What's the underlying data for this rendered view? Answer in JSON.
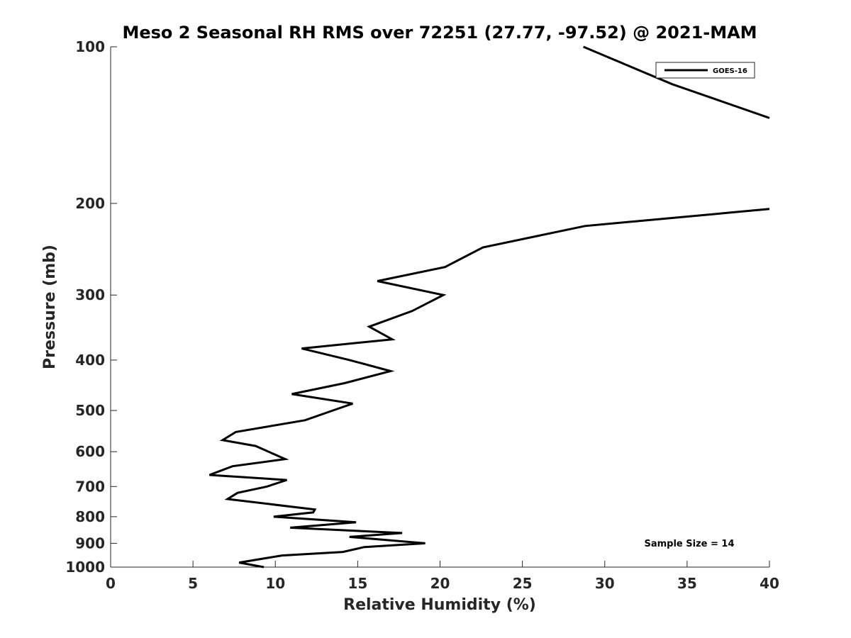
{
  "chart_data": {
    "type": "line",
    "title": "Meso 2 Seasonal RH RMS over 72251 (27.77, -97.52) @ 2021-MAM",
    "xlabel": "Relative Humidity (%)",
    "ylabel": "Pressure (mb)",
    "xlim": [
      0,
      40
    ],
    "ylim": [
      100,
      1000
    ],
    "y_scale": "log",
    "y_reversed": true,
    "xticks": [
      "0",
      "5",
      "10",
      "15",
      "20",
      "25",
      "30",
      "35",
      "40"
    ],
    "yticks": [
      "100",
      "200",
      "300",
      "400",
      "500",
      "600",
      "700",
      "800",
      "900",
      "1000"
    ],
    "legend_position": "top-right",
    "grid": false,
    "series": [
      {
        "name": "GOES-16",
        "color": "#000000",
        "segments": [
          [
            {
              "x": 28.7,
              "y": 100
            },
            {
              "x": 34.1,
              "y": 118
            },
            {
              "x": 40.0,
              "y": 137
            }
          ],
          [
            {
              "x": 40.0,
              "y": 205
            },
            {
              "x": 28.8,
              "y": 221
            },
            {
              "x": 22.6,
              "y": 243
            },
            {
              "x": 20.3,
              "y": 265
            },
            {
              "x": 16.2,
              "y": 282
            },
            {
              "x": 20.2,
              "y": 300
            },
            {
              "x": 18.3,
              "y": 322
            },
            {
              "x": 15.7,
              "y": 345
            },
            {
              "x": 17.1,
              "y": 365
            },
            {
              "x": 11.6,
              "y": 380
            },
            {
              "x": 14.5,
              "y": 400
            },
            {
              "x": 17.0,
              "y": 420
            },
            {
              "x": 14.2,
              "y": 443
            },
            {
              "x": 11.0,
              "y": 465
            },
            {
              "x": 14.7,
              "y": 485
            },
            {
              "x": 13.5,
              "y": 500
            },
            {
              "x": 11.8,
              "y": 522
            },
            {
              "x": 7.6,
              "y": 550
            },
            {
              "x": 6.8,
              "y": 570
            },
            {
              "x": 8.8,
              "y": 585
            },
            {
              "x": 10.6,
              "y": 620
            },
            {
              "x": 7.4,
              "y": 640
            },
            {
              "x": 6.0,
              "y": 665
            },
            {
              "x": 10.7,
              "y": 680
            },
            {
              "x": 9.5,
              "y": 700
            },
            {
              "x": 7.7,
              "y": 720
            },
            {
              "x": 7.1,
              "y": 740
            },
            {
              "x": 12.4,
              "y": 775
            },
            {
              "x": 12.3,
              "y": 785
            },
            {
              "x": 9.9,
              "y": 800
            },
            {
              "x": 14.9,
              "y": 820
            },
            {
              "x": 10.9,
              "y": 840
            },
            {
              "x": 17.7,
              "y": 860
            },
            {
              "x": 14.5,
              "y": 875
            },
            {
              "x": 19.1,
              "y": 900
            },
            {
              "x": 15.4,
              "y": 915
            },
            {
              "x": 14.1,
              "y": 935
            },
            {
              "x": 10.4,
              "y": 950
            },
            {
              "x": 7.8,
              "y": 980
            },
            {
              "x": 9.3,
              "y": 1000
            }
          ]
        ]
      }
    ],
    "annotation": "Sample Size = 14"
  }
}
